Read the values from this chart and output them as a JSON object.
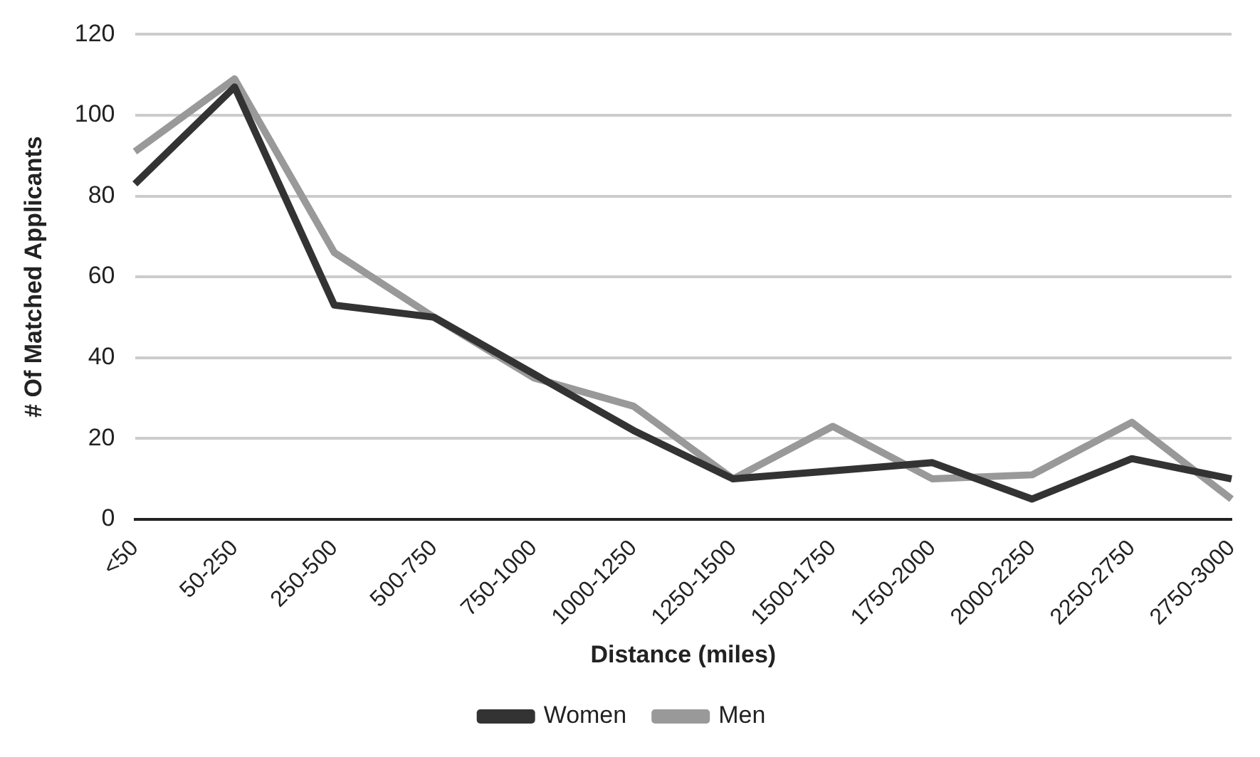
{
  "chart_data": {
    "type": "line",
    "xlabel": "Distance (miles)",
    "ylabel": "# Of Matched Applicants",
    "categories": [
      "<50",
      "50-250",
      "250-500",
      "500-750",
      "750-1000",
      "1000-1250",
      "1250-1500",
      "1500-1750",
      "1750-2000",
      "2000-2250",
      "2250-2750",
      "2750-3000"
    ],
    "series": [
      {
        "name": "Women",
        "color": "#333333",
        "values": [
          83,
          107,
          53,
          50,
          36,
          22,
          10,
          12,
          14,
          5,
          15,
          10
        ]
      },
      {
        "name": "Men",
        "color": "#999999",
        "values": [
          91,
          109,
          66,
          50,
          35,
          28,
          10,
          23,
          10,
          11,
          24,
          5
        ]
      }
    ],
    "ylim": [
      0,
      120
    ],
    "yticks": [
      0,
      20,
      40,
      60,
      80,
      100,
      120
    ],
    "grid": "y",
    "legend": "bottom",
    "marker": "none",
    "line_style": "solid"
  }
}
